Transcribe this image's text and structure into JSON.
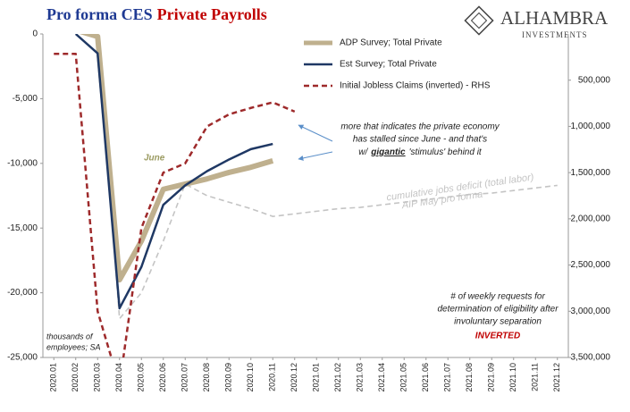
{
  "chart_data": {
    "type": "line",
    "title": "Pro forma CES",
    "title_highlight": "Private Payrolls",
    "logo": "ALHAMBRA",
    "logo_sub": "INVESTMENTS",
    "categories": [
      "2020.01",
      "2020.02",
      "2020.03",
      "2020.04",
      "2020.05",
      "2020.06",
      "2020.07",
      "2020.08",
      "2020.09",
      "2020.10",
      "2020.11",
      "2020.12",
      "2021.01",
      "2021.02",
      "2021.03",
      "2021.04",
      "2021.05",
      "2021.06",
      "2021.07",
      "2021.08",
      "2021.09",
      "2021.10",
      "2021.11",
      "2021.12"
    ],
    "ylim": [
      -25000,
      0
    ],
    "yticks": [
      0,
      {
        "value": -5000,
        "label": "-5,000"
      },
      {
        "value": -10000,
        "label": "-10,000"
      },
      {
        "value": -15000,
        "label": "-15,000"
      },
      {
        "value": -20000,
        "label": "-20,000"
      },
      {
        "value": -25000,
        "label": "-25,000"
      }
    ],
    "y2lim": [
      0,
      3500000
    ],
    "y2_inverted": true,
    "y2ticks": [
      {
        "value": 500000,
        "label": "500,000"
      },
      {
        "value": 1000000,
        "label": "1,000,000"
      },
      {
        "value": 1500000,
        "label": "1,500,000"
      },
      {
        "value": 2000000,
        "label": "2,000,000"
      },
      {
        "value": 2500000,
        "label": "2,500,000"
      },
      {
        "value": 3000000,
        "label": "3,000,000"
      },
      {
        "value": 3500000,
        "label": "3,500,000"
      }
    ],
    "series": [
      {
        "name": "ADP Survey; Total Private",
        "color": "#bfb08e",
        "width": 6,
        "dashed": false,
        "values": [
          300,
          300,
          -200,
          -19000,
          -16000,
          -12000,
          -11600,
          -11200,
          -10700,
          -10300,
          -9800,
          null,
          null,
          null,
          null,
          null,
          null,
          null,
          null,
          null,
          null,
          null,
          null,
          null
        ]
      },
      {
        "name": "Est Survey; Total Private",
        "color": "#1f3864",
        "width": 2.5,
        "dashed": false,
        "values": [
          null,
          0,
          -1500,
          -21200,
          -18000,
          -13200,
          -11700,
          -10600,
          -9700,
          -8900,
          -8500,
          null,
          null,
          null,
          null,
          null,
          null,
          null,
          null,
          null,
          null,
          null,
          null,
          null
        ]
      },
      {
        "name": "Initial Jobless Claims (inverted) - RHS",
        "color": "#9e2a2b",
        "width": 2.5,
        "dashed": true,
        "axis": "y2",
        "values": [
          215000,
          215000,
          3000000,
          3800000,
          2100000,
          1500000,
          1400000,
          1000000,
          870000,
          800000,
          740000,
          840000,
          null,
          null,
          null,
          null,
          null,
          null,
          null,
          null,
          null,
          null,
          null,
          null
        ]
      }
    ],
    "extra_series": [
      {
        "color": "#c4c4c4",
        "width": 1.6,
        "dashed": true,
        "values": [
          null,
          null,
          0,
          -22000,
          -20000,
          -16000,
          -11600,
          -12500,
          -13000,
          -13500,
          -14100,
          -13900,
          -13700,
          -13500,
          -13400,
          -13200,
          -13000,
          -12800,
          -12600,
          -12400,
          -12300,
          -12100,
          -11900,
          -11700
        ]
      }
    ],
    "annotations": {
      "june": "June",
      "stall_lines": [
        "more that indicates the private economy",
        "has stalled since June - and that's"
      ],
      "stall_last": [
        "w/",
        "gigantic",
        "'stimulus' behind it"
      ],
      "deficit": [
        "cumulative jobs deficit (total labor)",
        "AIP May pro forma"
      ],
      "claims_note": [
        "# of weekly requests for",
        "determination of eligibility after",
        "involuntary separation"
      ],
      "inverted": "INVERTED",
      "units": [
        "thousands of",
        "employees; SA"
      ]
    }
  }
}
